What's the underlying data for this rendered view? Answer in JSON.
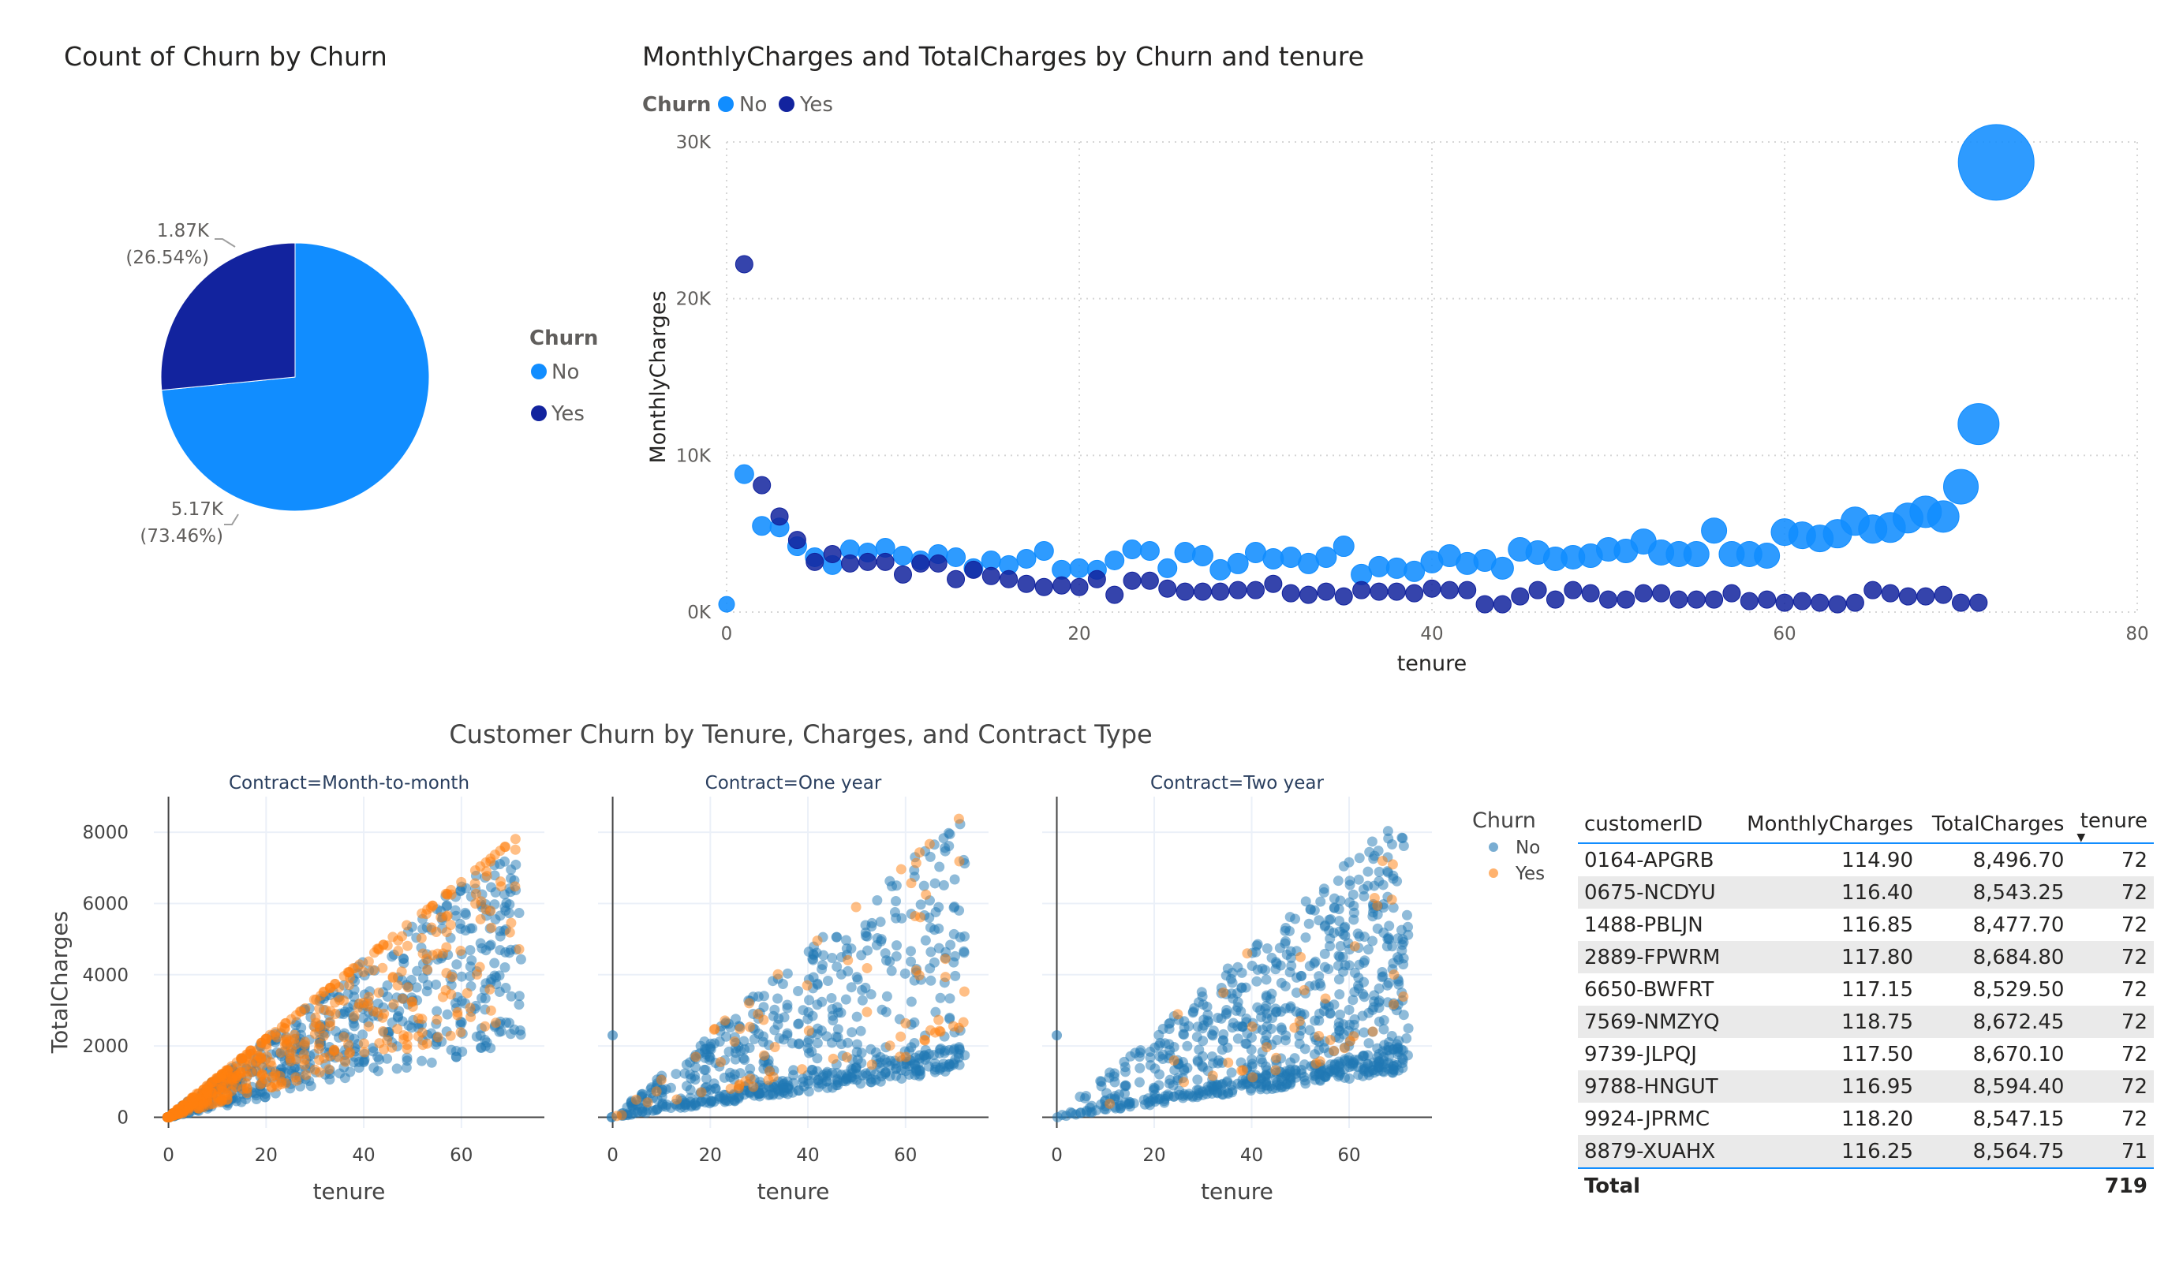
{
  "colors": {
    "pbi_no": "#118dff",
    "pbi_yes": "#12239e",
    "px_no": "#1f77b4",
    "px_yes": "#ff7f0e"
  },
  "chart_data": [
    {
      "type": "pie",
      "title": "Count of Churn by Churn",
      "legend_title": "Churn",
      "legend_position": "right",
      "slices": [
        {
          "name": "No",
          "value": 5170,
          "label": "5.17K",
          "pct_label": "(73.46%)",
          "color": "#118dff"
        },
        {
          "name": "Yes",
          "value": 1870,
          "label": "1.87K",
          "pct_label": "(26.54%)",
          "color": "#12239e"
        }
      ]
    },
    {
      "type": "scatter",
      "title": "MonthlyCharges and TotalCharges by Churn and tenure",
      "legend_title": "Churn",
      "legend_position": "top-left",
      "xlabel": "tenure",
      "ylabel": "MonthlyCharges",
      "xlim": [
        0,
        80
      ],
      "ylim": [
        0,
        30000
      ],
      "x_ticks": [
        0,
        20,
        40,
        60,
        80
      ],
      "y_ticks": [
        {
          "v": 0,
          "label": "0K"
        },
        {
          "v": 10000,
          "label": "10K"
        },
        {
          "v": 20000,
          "label": "20K"
        },
        {
          "v": 30000,
          "label": "30K"
        }
      ],
      "grid": true,
      "series": [
        {
          "name": "No",
          "color": "#118dff",
          "points": [
            [
              0,
              500
            ],
            [
              1,
              8800
            ],
            [
              2,
              5500
            ],
            [
              3,
              5400
            ],
            [
              4,
              4200
            ],
            [
              5,
              3500
            ],
            [
              6,
              3000
            ],
            [
              7,
              4000
            ],
            [
              8,
              3800
            ],
            [
              9,
              4100
            ],
            [
              10,
              3600
            ],
            [
              11,
              3300
            ],
            [
              12,
              3700
            ],
            [
              13,
              3500
            ],
            [
              14,
              2800
            ],
            [
              15,
              3300
            ],
            [
              16,
              3000
            ],
            [
              17,
              3400
            ],
            [
              18,
              3900
            ],
            [
              19,
              2700
            ],
            [
              20,
              2800
            ],
            [
              21,
              2700
            ],
            [
              22,
              3300
            ],
            [
              23,
              4000
            ],
            [
              24,
              3900
            ],
            [
              25,
              2800
            ],
            [
              26,
              3800
            ],
            [
              27,
              3600
            ],
            [
              28,
              2700
            ],
            [
              29,
              3100
            ],
            [
              30,
              3800
            ],
            [
              31,
              3400
            ],
            [
              32,
              3500
            ],
            [
              33,
              3100
            ],
            [
              34,
              3500
            ],
            [
              35,
              4200
            ],
            [
              36,
              2400
            ],
            [
              37,
              2900
            ],
            [
              38,
              2800
            ],
            [
              39,
              2600
            ],
            [
              40,
              3200
            ],
            [
              41,
              3600
            ],
            [
              42,
              3100
            ],
            [
              43,
              3300
            ],
            [
              44,
              2800
            ],
            [
              45,
              4000
            ],
            [
              46,
              3800
            ],
            [
              47,
              3400
            ],
            [
              48,
              3500
            ],
            [
              49,
              3600
            ],
            [
              50,
              4000
            ],
            [
              51,
              3900
            ],
            [
              52,
              4500
            ],
            [
              53,
              3800
            ],
            [
              54,
              3700
            ],
            [
              55,
              3700
            ],
            [
              56,
              5200
            ],
            [
              57,
              3700
            ],
            [
              58,
              3700
            ],
            [
              59,
              3600
            ],
            [
              60,
              5100
            ],
            [
              61,
              4900
            ],
            [
              62,
              4700
            ],
            [
              63,
              5000
            ],
            [
              64,
              5800
            ],
            [
              65,
              5300
            ],
            [
              66,
              5400
            ],
            [
              67,
              6000
            ],
            [
              68,
              6400
            ],
            [
              69,
              6100
            ],
            [
              70,
              8000
            ],
            [
              71,
              12000
            ],
            [
              72,
              28700
            ]
          ],
          "sizes": [
            10,
            12,
            12,
            12,
            12,
            12,
            12,
            12,
            12,
            12,
            12,
            12,
            12,
            12,
            12,
            12,
            12,
            12,
            12,
            12,
            12,
            12,
            12,
            12,
            12,
            12,
            13,
            13,
            13,
            13,
            13,
            13,
            13,
            13,
            13,
            13,
            13,
            13,
            13,
            13,
            14,
            14,
            14,
            14,
            14,
            15,
            15,
            15,
            15,
            15,
            15,
            15,
            16,
            16,
            16,
            16,
            16,
            16,
            16,
            16,
            17,
            17,
            17,
            18,
            18,
            18,
            19,
            19,
            20,
            20,
            22,
            26,
            48
          ]
        },
        {
          "name": "Yes",
          "color": "#12239e",
          "points": [
            [
              1,
              22200
            ],
            [
              2,
              8100
            ],
            [
              3,
              6100
            ],
            [
              4,
              4600
            ],
            [
              5,
              3200
            ],
            [
              6,
              3700
            ],
            [
              7,
              3100
            ],
            [
              8,
              3200
            ],
            [
              9,
              3200
            ],
            [
              10,
              2400
            ],
            [
              11,
              3100
            ],
            [
              12,
              3100
            ],
            [
              13,
              2100
            ],
            [
              14,
              2700
            ],
            [
              15,
              2300
            ],
            [
              16,
              2100
            ],
            [
              17,
              1800
            ],
            [
              18,
              1600
            ],
            [
              19,
              1700
            ],
            [
              20,
              1600
            ],
            [
              21,
              2100
            ],
            [
              22,
              1100
            ],
            [
              23,
              2000
            ],
            [
              24,
              2000
            ],
            [
              25,
              1500
            ],
            [
              26,
              1300
            ],
            [
              27,
              1300
            ],
            [
              28,
              1300
            ],
            [
              29,
              1400
            ],
            [
              30,
              1400
            ],
            [
              31,
              1800
            ],
            [
              32,
              1200
            ],
            [
              33,
              1100
            ],
            [
              34,
              1300
            ],
            [
              35,
              1000
            ],
            [
              36,
              1400
            ],
            [
              37,
              1300
            ],
            [
              38,
              1300
            ],
            [
              39,
              1200
            ],
            [
              40,
              1500
            ],
            [
              41,
              1400
            ],
            [
              42,
              1400
            ],
            [
              43,
              500
            ],
            [
              44,
              500
            ],
            [
              45,
              1000
            ],
            [
              46,
              1400
            ],
            [
              47,
              800
            ],
            [
              48,
              1400
            ],
            [
              49,
              1200
            ],
            [
              50,
              800
            ],
            [
              51,
              800
            ],
            [
              52,
              1200
            ],
            [
              53,
              1200
            ],
            [
              54,
              800
            ],
            [
              55,
              800
            ],
            [
              56,
              800
            ],
            [
              57,
              1200
            ],
            [
              58,
              700
            ],
            [
              59,
              800
            ],
            [
              60,
              600
            ],
            [
              61,
              700
            ],
            [
              62,
              600
            ],
            [
              63,
              500
            ],
            [
              64,
              600
            ],
            [
              65,
              1400
            ],
            [
              66,
              1200
            ],
            [
              67,
              1000
            ],
            [
              68,
              1000
            ],
            [
              69,
              1100
            ],
            [
              70,
              600
            ],
            [
              71,
              600
            ]
          ],
          "sizes": [
            11,
            11,
            11,
            11,
            11,
            11,
            11,
            11,
            11,
            11,
            11,
            11,
            11,
            11,
            11,
            11,
            11,
            11,
            11,
            11,
            11,
            11,
            11,
            11,
            11,
            11,
            11,
            11,
            11,
            11,
            11,
            11,
            11,
            11,
            11,
            11,
            11,
            11,
            11,
            11,
            11,
            11,
            11,
            11,
            11,
            11,
            11,
            11,
            11,
            11,
            11,
            11,
            11,
            11,
            11,
            11,
            11,
            11,
            11,
            11,
            11,
            11,
            11,
            11,
            11,
            11,
            11,
            11,
            11,
            11,
            11
          ]
        }
      ]
    },
    {
      "type": "scatter",
      "title": "Customer Churn by Tenure, Charges, and Contract Type",
      "legend_title": "Churn",
      "legend_position": "right",
      "xlabel": "tenure",
      "ylabel": "TotalCharges",
      "xlim": [
        -3,
        77
      ],
      "ylim": [
        -300,
        9000
      ],
      "x_ticks": [
        0,
        20,
        40,
        60
      ],
      "y_ticks": [
        0,
        2000,
        4000,
        6000,
        8000
      ],
      "grid": true,
      "series": [
        {
          "name": "No",
          "color": "#1f77b4"
        },
        {
          "name": "Yes",
          "color": "#ff7f0e"
        }
      ],
      "facets": [
        {
          "label": "Contract=Month-to-month",
          "rate_min": 18,
          "rate_max": 110,
          "yes_fraction": 0.43,
          "n": 1150,
          "max_tenure": 72,
          "outliers": []
        },
        {
          "label": "Contract=One year",
          "rate_min": 18,
          "rate_max": 118,
          "yes_fraction": 0.11,
          "n": 700,
          "max_tenure": 72,
          "outliers": [
            [
              0,
              2300
            ]
          ]
        },
        {
          "label": "Contract=Two year",
          "rate_min": 18,
          "rate_max": 120,
          "yes_fraction": 0.03,
          "n": 800,
          "max_tenure": 72,
          "outliers": [
            [
              0,
              2300
            ]
          ]
        }
      ]
    }
  ],
  "table": {
    "headers": [
      "customerID",
      "MonthlyCharges",
      "TotalCharges",
      "tenure"
    ],
    "sort_column": "tenure",
    "rows": [
      [
        "0164-APGRB",
        "114.90",
        "8,496.70",
        "72"
      ],
      [
        "0675-NCDYU",
        "116.40",
        "8,543.25",
        "72"
      ],
      [
        "1488-PBLJN",
        "116.85",
        "8,477.70",
        "72"
      ],
      [
        "2889-FPWRM",
        "117.80",
        "8,684.80",
        "72"
      ],
      [
        "6650-BWFRT",
        "117.15",
        "8,529.50",
        "72"
      ],
      [
        "7569-NMZYQ",
        "118.75",
        "8,672.45",
        "72"
      ],
      [
        "9739-JLPQJ",
        "117.50",
        "8,670.10",
        "72"
      ],
      [
        "9788-HNGUT",
        "116.95",
        "8,594.40",
        "72"
      ],
      [
        "9924-JPRMC",
        "118.20",
        "8,547.15",
        "72"
      ],
      [
        "8879-XUAHX",
        "116.25",
        "8,564.75",
        "71"
      ]
    ],
    "total_label": "Total",
    "total_value": "719"
  }
}
